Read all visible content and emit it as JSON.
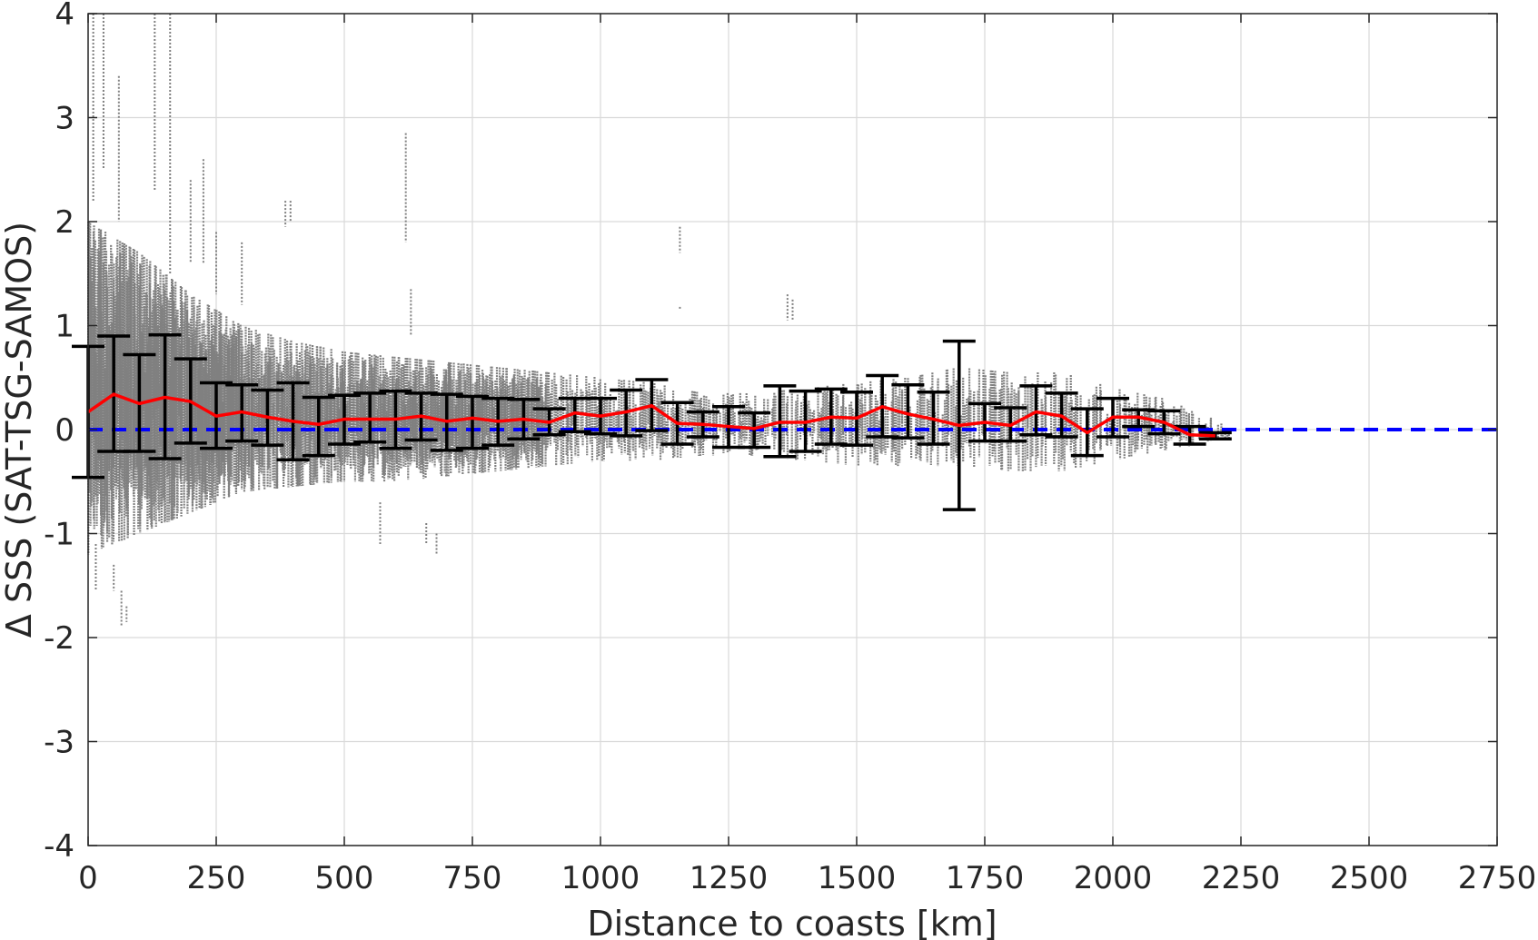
{
  "chart_data": {
    "type": "scatter",
    "title": "",
    "xlabel": "Distance to coasts [km]",
    "ylabel": "Δ SSS (SAT-TSG-SAMOS)",
    "xlim": [
      0,
      2750
    ],
    "ylim": [
      -4,
      4
    ],
    "grid": true,
    "xticks": [
      0,
      250,
      500,
      750,
      1000,
      1250,
      1500,
      1750,
      2000,
      2250,
      2500,
      2750
    ],
    "xtick_labels": [
      "0",
      "250",
      "500",
      "750",
      "1000",
      "1250",
      "1500",
      "1750",
      "2000",
      "2250",
      "2500",
      "2750"
    ],
    "yticks": [
      4,
      3,
      2,
      1,
      0,
      -1,
      -2,
      -3,
      -4
    ],
    "ytick_labels": [
      "4",
      "3",
      "2",
      "1",
      "0",
      "-1",
      "-2",
      "-3",
      "-4"
    ],
    "colors": {
      "scatter": "#808080",
      "mean_line": "#ff0000",
      "error_bars": "#000000",
      "zero_line": "#0000ff"
    },
    "series": [
      {
        "type": "errorbar-line",
        "x": [
          0,
          50,
          100,
          150,
          200,
          250,
          300,
          350,
          400,
          450,
          500,
          550,
          600,
          650,
          700,
          750,
          800,
          850,
          900,
          950,
          1000,
          1050,
          1100,
          1150,
          1200,
          1250,
          1300,
          1350,
          1400,
          1450,
          1500,
          1550,
          1600,
          1650,
          1700,
          1750,
          1800,
          1850,
          1900,
          1950,
          2000,
          2050,
          2100,
          2150,
          2200
        ],
        "mean": [
          0.17,
          0.34,
          0.25,
          0.31,
          0.27,
          0.13,
          0.17,
          0.12,
          0.08,
          0.05,
          0.1,
          0.1,
          0.1,
          0.13,
          0.08,
          0.11,
          0.08,
          0.1,
          0.07,
          0.16,
          0.13,
          0.17,
          0.23,
          0.06,
          0.05,
          0.03,
          0.01,
          0.07,
          0.07,
          0.12,
          0.11,
          0.22,
          0.15,
          0.1,
          0.04,
          0.07,
          0.04,
          0.17,
          0.13,
          -0.03,
          0.12,
          0.12,
          0.07,
          -0.05,
          -0.06
        ],
        "upper": [
          0.8,
          0.9,
          0.72,
          0.91,
          0.68,
          0.45,
          0.43,
          0.38,
          0.45,
          0.31,
          0.33,
          0.35,
          0.37,
          0.35,
          0.34,
          0.32,
          0.3,
          0.29,
          0.2,
          0.3,
          0.3,
          0.38,
          0.48,
          0.26,
          0.17,
          0.22,
          0.16,
          0.42,
          0.37,
          0.39,
          0.36,
          0.52,
          0.43,
          0.36,
          0.85,
          0.25,
          0.21,
          0.42,
          0.35,
          0.2,
          0.3,
          0.19,
          0.18,
          0.03,
          -0.03
        ],
        "lower": [
          -0.46,
          -0.21,
          -0.21,
          -0.28,
          -0.13,
          -0.18,
          -0.11,
          -0.15,
          -0.29,
          -0.25,
          -0.14,
          -0.12,
          -0.18,
          -0.1,
          -0.2,
          -0.18,
          -0.15,
          -0.09,
          -0.05,
          -0.02,
          -0.04,
          -0.06,
          -0.01,
          -0.14,
          -0.07,
          -0.17,
          -0.17,
          -0.26,
          -0.21,
          -0.14,
          -0.15,
          -0.07,
          -0.08,
          -0.14,
          -0.77,
          -0.11,
          -0.11,
          -0.05,
          -0.07,
          -0.25,
          -0.07,
          0.03,
          -0.04,
          -0.14,
          -0.09
        ]
      },
      {
        "type": "reference-line",
        "y": 0,
        "x": [
          0,
          2750
        ]
      }
    ],
    "scatter_envelope": {
      "x": [
        0,
        100,
        200,
        300,
        400,
        500,
        600,
        700,
        800,
        900,
        1000,
        1100,
        1200,
        1300,
        1400,
        1500,
        1600,
        1700,
        1800,
        1900,
        2000,
        2100,
        2200,
        2230
      ],
      "upper": [
        2.0,
        1.7,
        1.3,
        1.0,
        0.85,
        0.75,
        0.7,
        0.65,
        0.6,
        0.55,
        0.5,
        0.45,
        0.35,
        0.35,
        0.4,
        0.45,
        0.5,
        0.6,
        0.55,
        0.55,
        0.4,
        0.3,
        0.1,
        0.0
      ],
      "lower": [
        -1.2,
        -1.0,
        -0.8,
        -0.6,
        -0.55,
        -0.5,
        -0.5,
        -0.45,
        -0.4,
        -0.35,
        -0.3,
        -0.3,
        -0.25,
        -0.25,
        -0.3,
        -0.35,
        -0.35,
        -0.35,
        -0.4,
        -0.4,
        -0.3,
        -0.2,
        -0.12,
        -0.1
      ]
    },
    "scatter_outliers": [
      {
        "x": 10,
        "y0": 2.2,
        "y1": 4.0
      },
      {
        "x": 30,
        "y0": 2.5,
        "y1": 4.0
      },
      {
        "x": 60,
        "y0": 2.0,
        "y1": 3.4
      },
      {
        "x": 130,
        "y0": 2.3,
        "y1": 4.0
      },
      {
        "x": 160,
        "y0": 1.5,
        "y1": 4.0
      },
      {
        "x": 200,
        "y0": 1.6,
        "y1": 2.4
      },
      {
        "x": 225,
        "y0": 1.6,
        "y1": 2.6
      },
      {
        "x": 250,
        "y0": 1.3,
        "y1": 1.9
      },
      {
        "x": 300,
        "y0": 1.2,
        "y1": 1.8
      },
      {
        "x": 385,
        "y0": 1.95,
        "y1": 2.2
      },
      {
        "x": 395,
        "y0": 2.0,
        "y1": 2.2
      },
      {
        "x": 620,
        "y0": 1.8,
        "y1": 2.85
      },
      {
        "x": 630,
        "y0": 0.9,
        "y1": 1.35
      },
      {
        "x": 1155,
        "y0": 1.7,
        "y1": 1.95
      },
      {
        "x": 1155,
        "y0": 1.15,
        "y1": 1.18
      },
      {
        "x": 1365,
        "y0": 1.05,
        "y1": 1.3
      },
      {
        "x": 1375,
        "y0": 1.05,
        "y1": 1.25
      },
      {
        "x": 15,
        "y0": -1.55,
        "y1": -1.1
      },
      {
        "x": 50,
        "y0": -1.55,
        "y1": -1.3
      },
      {
        "x": 65,
        "y0": -1.9,
        "y1": -1.55
      },
      {
        "x": 75,
        "y0": -1.85,
        "y1": -1.7
      },
      {
        "x": 570,
        "y0": -1.1,
        "y1": -0.7
      },
      {
        "x": 660,
        "y0": -1.1,
        "y1": -0.9
      },
      {
        "x": 680,
        "y0": -1.2,
        "y1": -1.0
      }
    ]
  }
}
